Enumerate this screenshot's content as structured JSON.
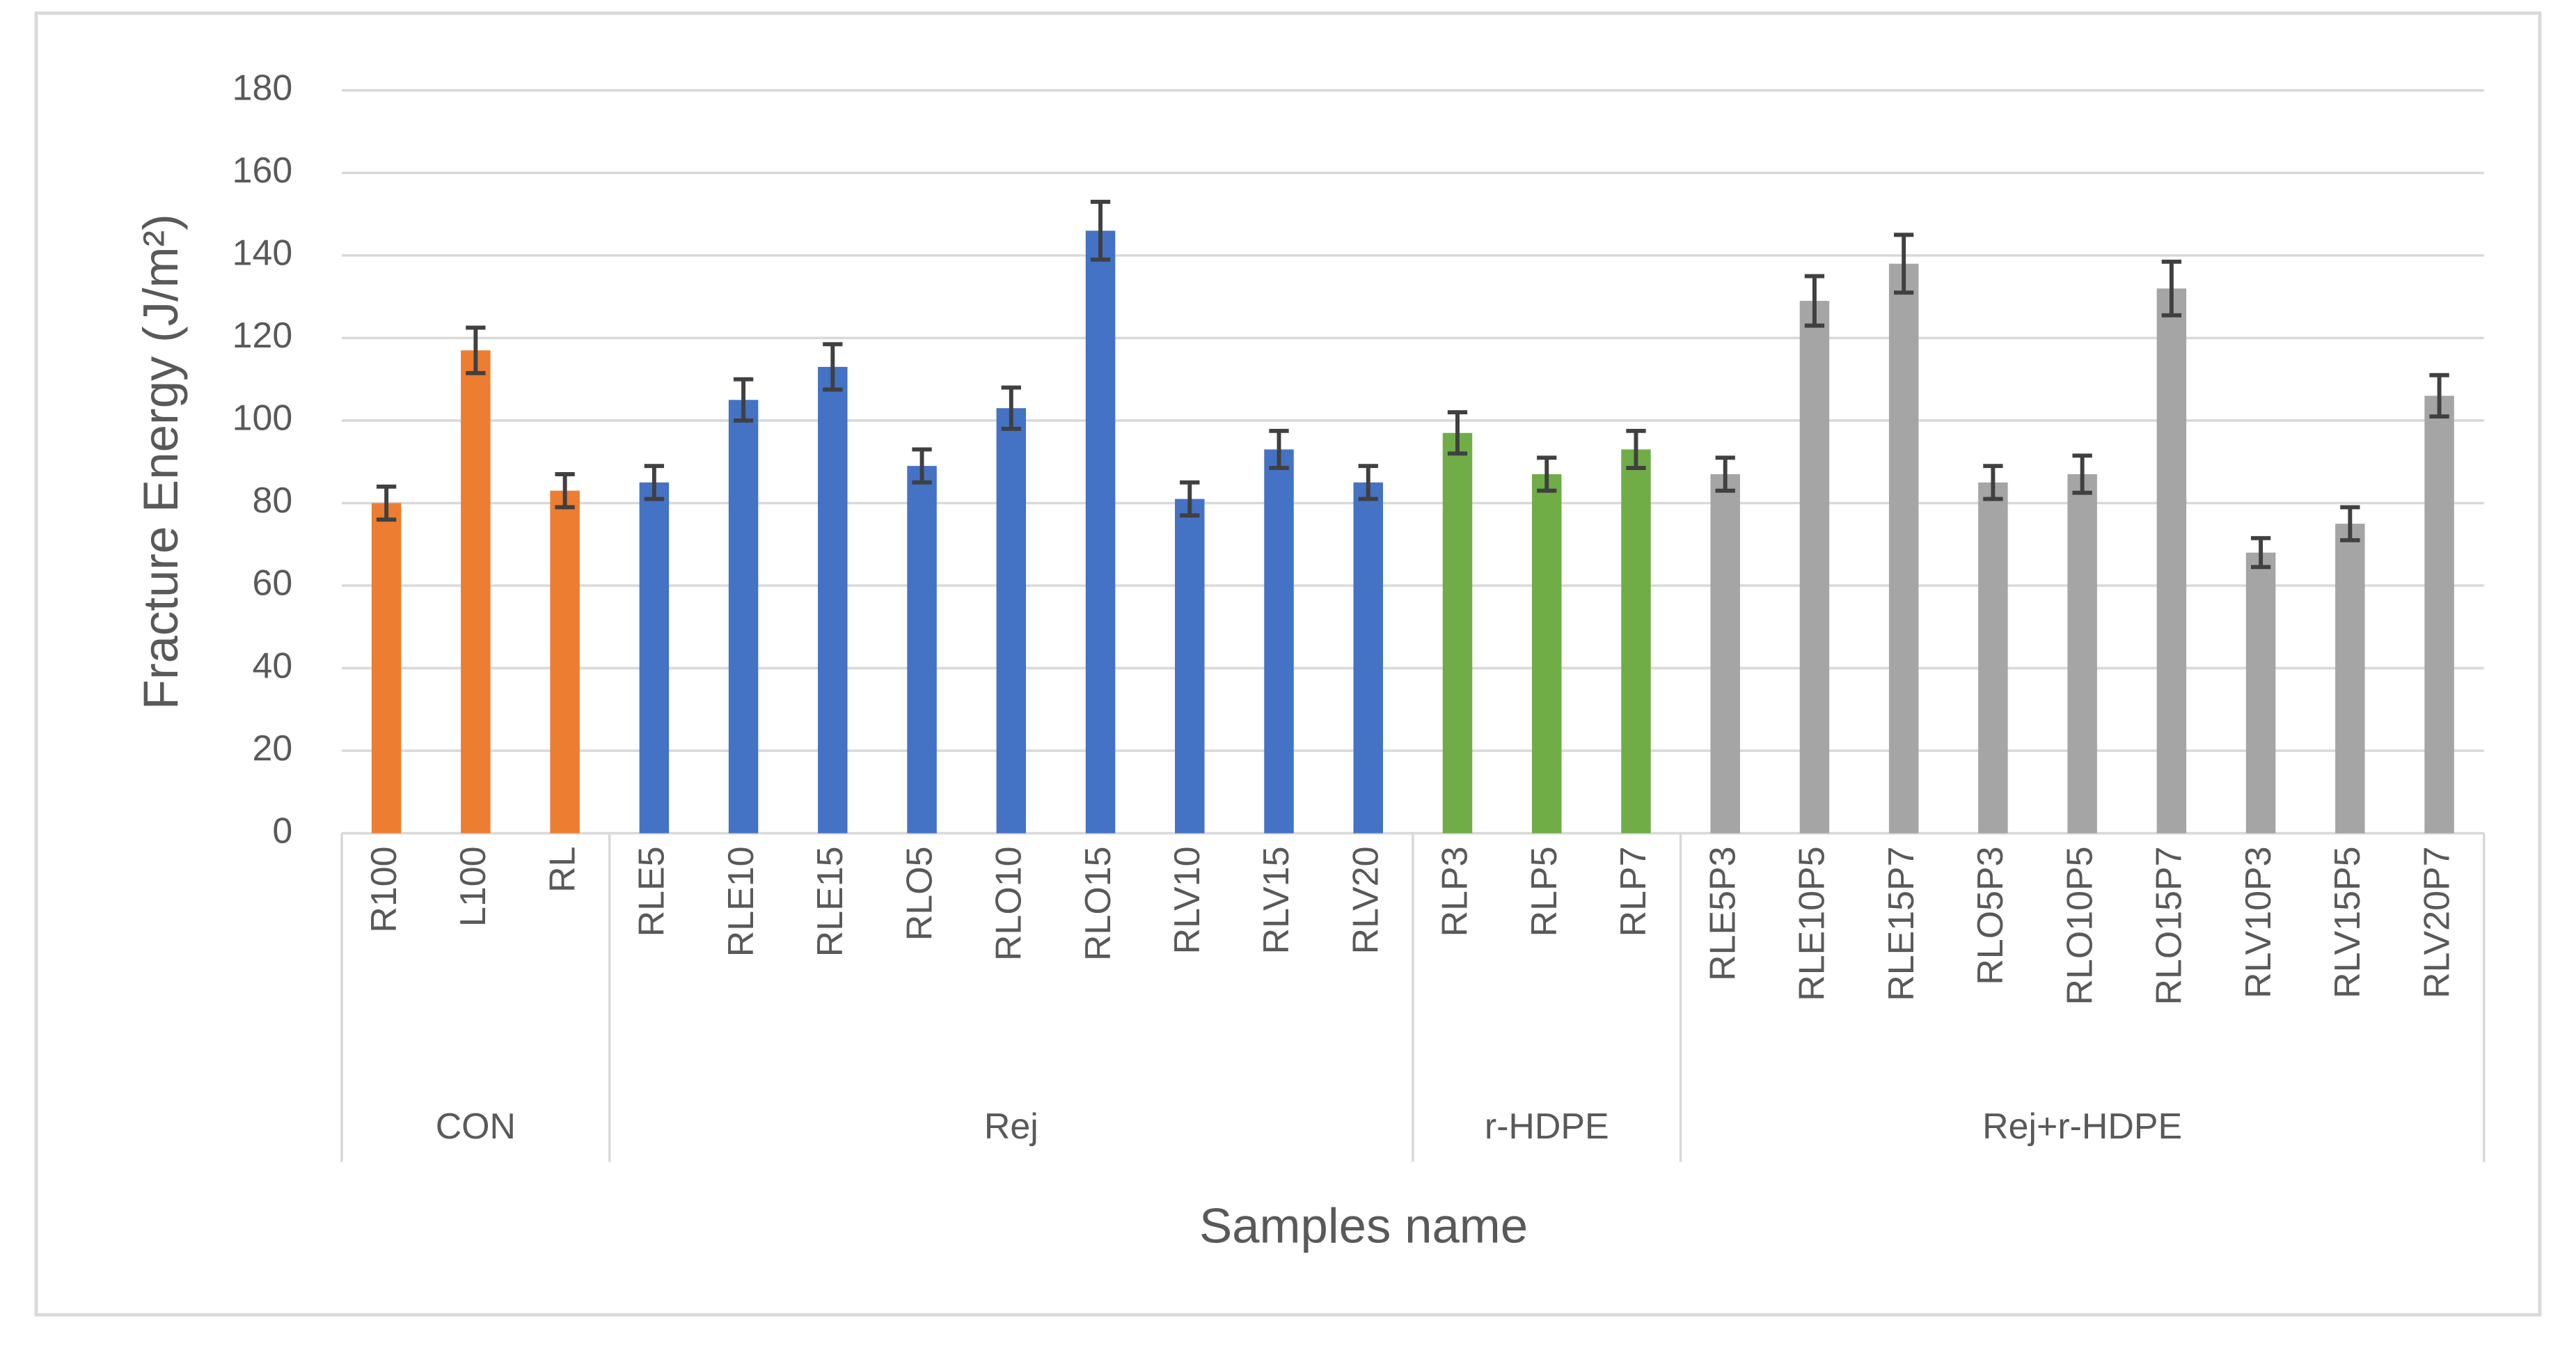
{
  "chart_data": {
    "type": "bar",
    "y_label": "Fracture Energy (J/m²)",
    "x_label": "Samples name",
    "ylim": [
      0,
      180
    ],
    "yticks": [
      0,
      20,
      40,
      60,
      80,
      100,
      120,
      140,
      160,
      180
    ],
    "grid": true,
    "groups": [
      {
        "name": "CON",
        "color": "#ed7d31",
        "categories": [
          "R100",
          "L100",
          "RL"
        ],
        "values": [
          80,
          117,
          83
        ],
        "errors": [
          4,
          5.5,
          4
        ]
      },
      {
        "name": "Rej",
        "color": "#4472c4",
        "categories": [
          "RLE5",
          "RLE10",
          "RLE15",
          "RLO5",
          "RLO10",
          "RLO15",
          "RLV10",
          "RLV15",
          "RLV20"
        ],
        "values": [
          85,
          105,
          113,
          89,
          103,
          146,
          81,
          93,
          85
        ],
        "errors": [
          4,
          5,
          5.5,
          4,
          5,
          7,
          4,
          4.5,
          4
        ]
      },
      {
        "name": "r-HDPE",
        "color": "#70ad47",
        "categories": [
          "RLP3",
          "RLP5",
          "RLP7"
        ],
        "values": [
          97,
          87,
          93
        ],
        "errors": [
          5,
          4,
          4.5
        ]
      },
      {
        "name": "Rej+r-HDPE",
        "color": "#a5a5a5",
        "categories": [
          "RLE5P3",
          "RLE10P5",
          "RLE15P7",
          "RLO5P3",
          "RLO10P5",
          "RLO15P7",
          "RLV10P3",
          "RLV15P5",
          "RLV20P7"
        ],
        "values": [
          87,
          129,
          138,
          85,
          87,
          132,
          68,
          75,
          106
        ],
        "errors": [
          4,
          6,
          7,
          4,
          4.5,
          6.5,
          3.5,
          4,
          5
        ]
      }
    ]
  }
}
